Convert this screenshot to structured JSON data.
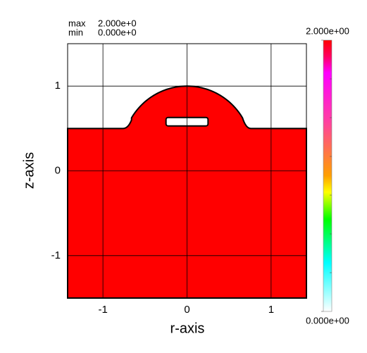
{
  "chart_data": {
    "type": "field",
    "max_label": "max",
    "max": {
      "value": 2,
      "label": "2.000e+0"
    },
    "min_label": "min",
    "min": {
      "value": 0,
      "label": "0.000e+0"
    },
    "xlabel": "r-axis",
    "ylabel": "z-axis",
    "xlim": [
      -1.42,
      1.42
    ],
    "ylim": [
      -1.5,
      1.5
    ],
    "xticks": [
      -1,
      0,
      1
    ],
    "yticks": [
      -1,
      0,
      1
    ],
    "grid": true,
    "color": "#ff0000",
    "colorbar": {
      "lim": [
        0,
        2
      ],
      "ticks": [
        {
          "value": 0,
          "label": "0.000e+00"
        },
        {
          "value": 2,
          "label": "2.000e+00"
        }
      ]
    }
  }
}
